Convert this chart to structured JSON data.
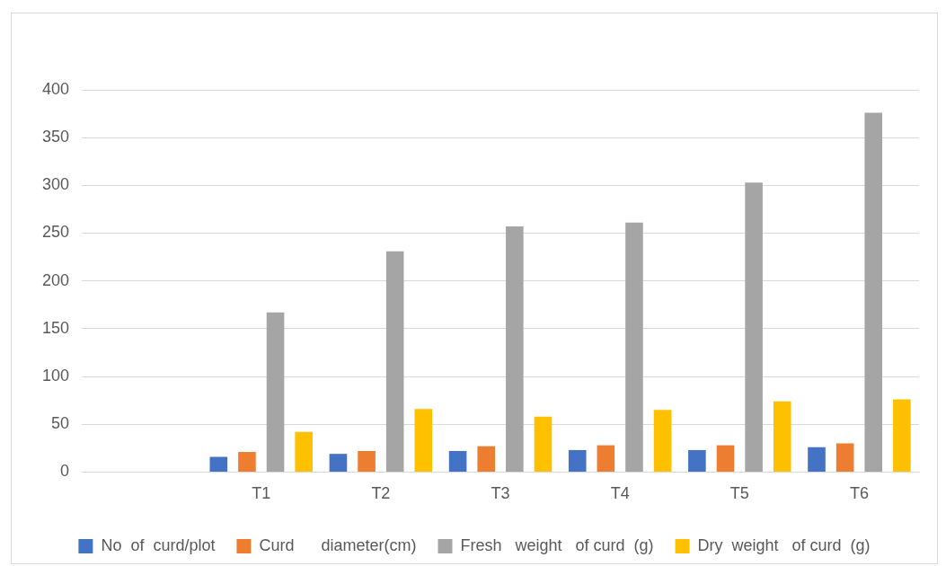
{
  "chart_data": {
    "type": "bar",
    "categories": [
      null,
      "T1",
      "T2",
      "T3",
      "T4",
      "T5",
      "T6"
    ],
    "series": [
      {
        "name": "No  of  curd/plot",
        "color": "#4472c4",
        "values": [
          null,
          16,
          19,
          22,
          23,
          23,
          26
        ]
      },
      {
        "name": "Curd      diameter(cm)",
        "color": "#ed7d31",
        "values": [
          null,
          21,
          22,
          27,
          28,
          28,
          30
        ]
      },
      {
        "name": "Fresh   weight   of curd  (g)",
        "color": "#a5a5a5",
        "values": [
          null,
          167,
          231,
          257,
          261,
          303,
          376
        ]
      },
      {
        "name": "Dry  weight   of curd  (g)",
        "color": "#ffc000",
        "values": [
          null,
          42,
          66,
          58,
          65,
          74,
          76
        ]
      }
    ],
    "ylim": [
      0,
      400
    ],
    "yticks": [
      0,
      50,
      100,
      150,
      200,
      250,
      300,
      350,
      400
    ],
    "grid": "y",
    "legend": "bottom"
  }
}
